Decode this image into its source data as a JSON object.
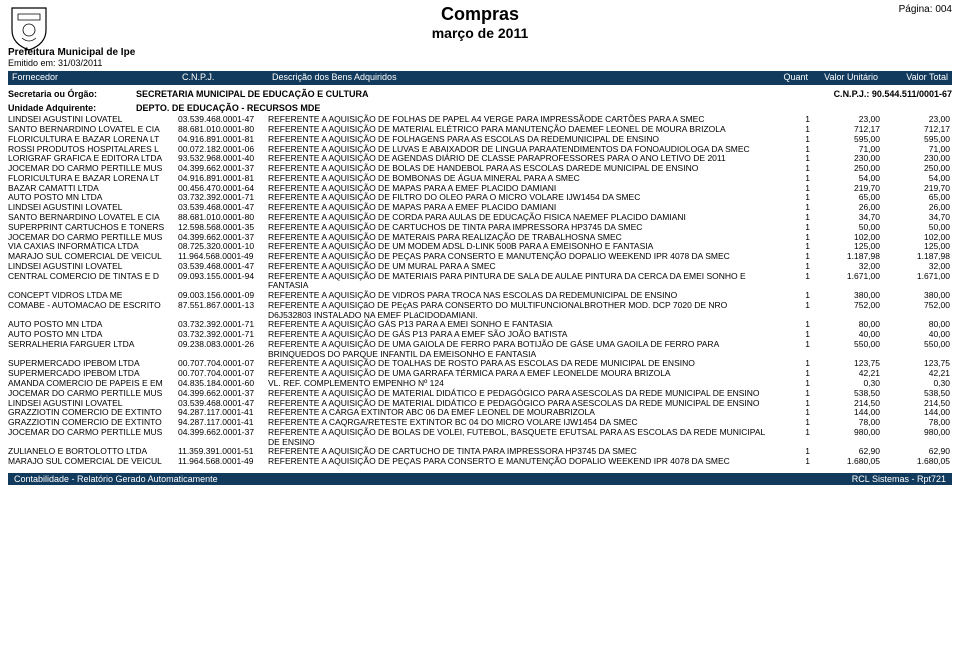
{
  "page": {
    "page_label": "Página:",
    "page_number": "004",
    "title1": "Compras",
    "title2": "março  de  2011",
    "org1": "Prefeitura Municipal de Ipe",
    "org2": "Emitido em: 31/03/2011"
  },
  "colors": {
    "band_bg": "#123a5c",
    "band_fg": "#ffffff",
    "page_bg": "#ffffff",
    "text": "#000000"
  },
  "columns": {
    "fornecedor": "Fornecedor",
    "cnpj": "C.N.P.J.",
    "descricao": "Descrição dos Bens Adquiridos",
    "quant": "Quant",
    "valor_unit": "Valor Unitário",
    "valor_total": "Valor Total"
  },
  "section": {
    "label1": "Secretaria ou Órgão:",
    "val1": "SECRETARIA MUNICIPAL DE EDUCAÇÃO E CULTURA",
    "right": "C.N.P.J.: 90.544.511/0001-67",
    "label2": "Unidade Adquirente:",
    "val2": "DEPTO. DE EDUCAÇÃO - RECURSOS MDE"
  },
  "rows": [
    {
      "f": "LINDSEI AGUSTINI LOVATEL",
      "c": "03.539.468.0001-47",
      "d": "REFERENTE A AQUISIÇÃO DE FOLHAS DE PAPEL A4 VERGE PARA IMPRESSÃODE CARTÕES PARA A SMEC",
      "q": "1",
      "vu": "23,00",
      "vt": "23,00"
    },
    {
      "f": "SANTO BERNARDINO LOVATEL E CIA",
      "c": "88.681.010.0001-80",
      "d": "REFERENTE A AQUISIÇÃO DE MATERIAL ELÉTRICO PARA MANUTENÇÃO DAEMEF LEONEL DE MOURA BRIZOLA",
      "q": "1",
      "vu": "712,17",
      "vt": "712,17"
    },
    {
      "f": "FLORICULTURA E BAZAR LORENA LT",
      "c": "04.916.891.0001-81",
      "d": "REFERENTE A AQUISIÇÃO DE FOLHAGENS PARA AS ESCOLAS DA REDEMUNICIPAL DE ENSINO",
      "q": "1",
      "vu": "595,00",
      "vt": "595,00"
    },
    {
      "f": "ROSSI PRODUTOS HOSPITALARES L",
      "c": "00.072.182.0001-06",
      "d": "REFERENTE A AQUISIÇÃO DE LUVAS E ABAIXADOR DE LINGUA PARAATENDIMENTOS DA FONOAUDIOLOGA DA SMEC",
      "q": "1",
      "vu": "71,00",
      "vt": "71,00"
    },
    {
      "f": "LORIGRAF GRAFICA E EDITORA LTDA",
      "c": "93.532.968.0001-40",
      "d": "REFERENTE A AQUISIÇÃO DE AGENDAS DIÁRIO DE CLASSE PARAPROFESSORES PARA O ANO LETIVO DE 2011",
      "q": "1",
      "vu": "230,00",
      "vt": "230,00"
    },
    {
      "f": "JOCEMAR DO CARMO PERTILLE MUS",
      "c": "04.399.662.0001-37",
      "d": "REFERENTE A AQUISIÇÃO DE BOLAS DE HANDEBOL PARA AS ESCOLAS DAREDE MUNICIPAL DE ENSINO",
      "q": "1",
      "vu": "250,00",
      "vt": "250,00"
    },
    {
      "f": "FLORICULTURA E BAZAR LORENA LT",
      "c": "04.916.891.0001-81",
      "d": "REFERENTE A AQUISIÇÃO DE BOMBONAS DE ÁGUA MINERAL PARA A SMEC",
      "q": "1",
      "vu": "54,00",
      "vt": "54,00"
    },
    {
      "f": "BAZAR CAMATTI LTDA",
      "c": "00.456.470.0001-64",
      "d": "REFERENTE A AQUISIÇÃO DE MAPAS PARA A EMEF PLACIDO DAMIANI",
      "q": "1",
      "vu": "219,70",
      "vt": "219,70"
    },
    {
      "f": "AUTO POSTO MN LTDA",
      "c": "03.732.392.0001-71",
      "d": "REFERENTE A AQUISIÇÃO DE FILTRO DO OLEO PARA O MICRO VOLARE IJW1454 DA SMEC",
      "q": "1",
      "vu": "65,00",
      "vt": "65,00"
    },
    {
      "f": "LINDSEI AGUSTINI LOVATEL",
      "c": "03.539.468.0001-47",
      "d": "REFERENTE A AQUISIÇÃO DE MAPAS PARA A EMEF PLACIDO DAMIANI",
      "q": "1",
      "vu": "26,00",
      "vt": "26,00"
    },
    {
      "f": "SANTO BERNARDINO LOVATEL E CIA",
      "c": "88.681.010.0001-80",
      "d": "REFERENTE A AQUISIÇÃO DE CORDA PARA AULAS DE EDUCAÇÃO FISICA NAEMEF PLACIDO DAMIANI",
      "q": "1",
      "vu": "34,70",
      "vt": "34,70"
    },
    {
      "f": "SUPERPRINT CARTUCHOS E TONERS",
      "c": "12.598.568.0001-35",
      "d": "REFERENTE A AQUISIÇÃO DE CARTUCHOS DE TINTA PARA IMPRESSORA HP3745 DA SMEC",
      "q": "1",
      "vu": "50,00",
      "vt": "50,00"
    },
    {
      "f": "JOCEMAR DO CARMO PERTILLE MUS",
      "c": "04.399.662.0001-37",
      "d": "REFERENTE A AQUISIÇÃO DE MATERAIS PARA REALIZAÇÃO DE TRABALHOSNA SMEC",
      "q": "1",
      "vu": "102,00",
      "vt": "102,00"
    },
    {
      "f": "VIA CAXIAS INFORMÁTICA LTDA",
      "c": "08.725.320.0001-10",
      "d": "REFERENTE A AQUISIÇÃO DE UM MODEM ADSL D-LINK 500B PARA A EMEISONHO E FANTASIA",
      "q": "1",
      "vu": "125,00",
      "vt": "125,00"
    },
    {
      "f": "MARAJO SUL COMERCIAL DE VEICUL",
      "c": "11.964.568.0001-49",
      "d": "REFERENTE A AQUISIÇÃO DE PEÇAS PARA CONSERTO E MANUTENÇÃO DOPALIO WEEKEND IPR 4078 DA SMEC",
      "q": "1",
      "vu": "1.187,98",
      "vt": "1.187,98"
    },
    {
      "f": "LINDSEI AGUSTINI LOVATEL",
      "c": "03.539.468.0001-47",
      "d": "REFERENTE A AQUISIÇÃO DE UM MURAL PARA A SMEC",
      "q": "1",
      "vu": "32,00",
      "vt": "32,00"
    },
    {
      "f": "CENTRAL COMERCIO DE TINTAS E D",
      "c": "09.093.155.0001-94",
      "d": "REFERENTE A AQUISIÇÃO DE MATERIAIS PARA PINTURA DE SALA DE AULAE PINTURA DA CERCA DA EMEI SONHO E FANTASIA",
      "q": "1",
      "vu": "1.671,00",
      "vt": "1.671,00"
    },
    {
      "f": "CONCEPT VIDROS LTDA ME",
      "c": "09.003.156.0001-09",
      "d": "REFERENTE A AQUISIÇÃO DE VIDROS PARA TROCA NAS ESCOLAS DA REDEMUNICIPAL DE ENSINO",
      "q": "1",
      "vu": "380,00",
      "vt": "380,00"
    },
    {
      "f": "COMABE - AUTOMACAO DE ESCRITO",
      "c": "87.551.867.0001-13",
      "d": "REFERENTE A AQUISIÇãO DE PEçAS PARA CONSERTO DO MULTIFUNCIONALBROTHER MOD. DCP 7020 DE NRO D6J532803 INSTALADO NA EMEF PLáCIDODAMIANI.",
      "q": "1",
      "vu": "752,00",
      "vt": "752,00"
    },
    {
      "f": "AUTO POSTO MN LTDA",
      "c": "03.732.392.0001-71",
      "d": "REFERENTE A AQUISIÇÃO GÁS P13 PARA A EMEI SONHO E FANTASIA",
      "q": "1",
      "vu": "80,00",
      "vt": "80,00"
    },
    {
      "f": "AUTO POSTO MN LTDA",
      "c": "03.732.392.0001-71",
      "d": "REFERENTE A AQUISIÇÃO DE GÁS P13 PARA A EMEF SÃO JOÃO BATISTA",
      "q": "1",
      "vu": "40,00",
      "vt": "40,00"
    },
    {
      "f": "SERRALHERIA FARGUER LTDA",
      "c": "09.238.083.0001-26",
      "d": "REFERENTE A AQUISIÇÃO DE UMA GAIOLA DE FERRO PARA BOTIJÃO DE GÁSE UMA GAOILA DE FERRO PARA BRINQUEDOS DO PARQUE INFANTIL DA EMEISONHO E FANTASIA",
      "q": "1",
      "vu": "550,00",
      "vt": "550,00"
    },
    {
      "f": "SUPERMERCADO IPEBOM LTDA",
      "c": "00.707.704.0001-07",
      "d": "REFERENTE A AQUISIÇÃO DE TOALHAS DE ROSTO PARA AS ESCOLAS DA REDE MUNICIPAL DE ENSINO",
      "q": "1",
      "vu": "123,75",
      "vt": "123,75"
    },
    {
      "f": "SUPERMERCADO IPEBOM LTDA",
      "c": "00.707.704.0001-07",
      "d": "REFERENTE A AQUISIÇÃO DE UMA GARRAFA TÉRMICA PARA A EMEF LEONELDE MOURA BRIZOLA",
      "q": "1",
      "vu": "42,21",
      "vt": "42,21"
    },
    {
      "f": "AMANDA COMERCIO DE PAPEIS E EM",
      "c": "04.835.184.0001-60",
      "d": "VL. REF. COMPLEMENTO EMPENHO Nº 124",
      "q": "1",
      "vu": "0,30",
      "vt": "0,30"
    },
    {
      "f": "JOCEMAR DO CARMO PERTILLE MUS",
      "c": "04.399.662.0001-37",
      "d": "REFERENTE A AQUISIÇÃO DE MATERIAL DIDÁTICO E PEDAGÓGICO PARA ASESCOLAS DA REDE MUNICIPAL DE ENSINO",
      "q": "1",
      "vu": "538,50",
      "vt": "538,50"
    },
    {
      "f": "LINDSEI AGUSTINI LOVATEL",
      "c": "03.539.468.0001-47",
      "d": "REFERENTE A AQUISIÇÃO DE MATERIAL DIDÁTICO E PEDAGÓGICO PARA ASESCOLAS DA REDE MUNICIPAL DE ENSINO",
      "q": "1",
      "vu": "214,50",
      "vt": "214,50"
    },
    {
      "f": "GRAZZIOTIN COMERCIO DE EXTINTO",
      "c": "94.287.117.0001-41",
      "d": "REFERENTE A CARGA EXTINTOR ABC 06 DA EMEF LEONEL DE MOURABRIZOLA",
      "q": "1",
      "vu": "144,00",
      "vt": "144,00"
    },
    {
      "f": "GRAZZIOTIN COMERCIO DE EXTINTO",
      "c": "94.287.117.0001-41",
      "d": "REFERENTE A CAQRGA/RETESTE EXTINTOR BC 04 DO MICRO VOLARE IJW1454 DA SMEC",
      "q": "1",
      "vu": "78,00",
      "vt": "78,00"
    },
    {
      "f": "JOCEMAR DO CARMO PERTILLE MUS",
      "c": "04.399.662.0001-37",
      "d": "REFERENTE A AQUISIÇÃO DE BOLAS DE VOLEI, FUTEBOL, BASQUETE EFUTSAL PARA AS ESCOLAS DA REDE MUNICIPAL DE ENSINO",
      "q": "1",
      "vu": "980,00",
      "vt": "980,00"
    },
    {
      "f": "ZULIANELO E BORTOLOTTO LTDA",
      "c": "11.359.391.0001-51",
      "d": "REFERENTE A AQUISIÇÃO DE CARTUCHO DE TINTA PARA IMPRESSORA HP3745 DA SMEC",
      "q": "1",
      "vu": "62,90",
      "vt": "62,90"
    },
    {
      "f": "MARAJO SUL COMERCIAL DE VEICUL",
      "c": "11.964.568.0001-49",
      "d": "REFERENTE A AQUISIÇÃO DE PEÇAS PARA CONSERTO E MANUTENÇÃO DOPALIO WEEKEND IPR 4078 DA SMEC",
      "q": "1",
      "vu": "1.680,05",
      "vt": "1.680,05"
    }
  ],
  "footer": {
    "left": "Contabilidade - Relatório Gerado Automaticamente",
    "right": "RCL Sistemas - Rpt721"
  }
}
